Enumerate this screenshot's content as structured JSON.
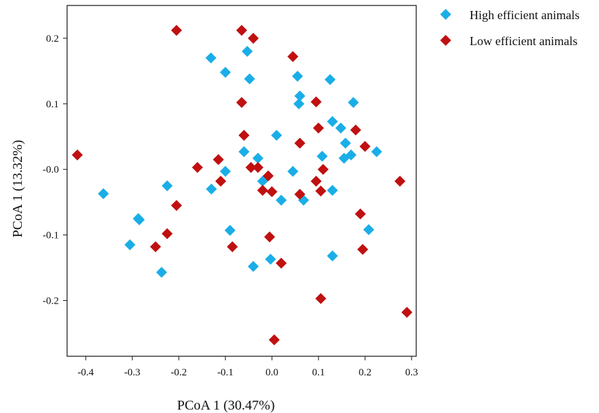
{
  "chart_data": {
    "type": "scatter",
    "title": "",
    "xlabel": "PCoA 1 (30.47%)",
    "ylabel": "PCoA 1 (13.32%)",
    "xlim": [
      -0.44,
      0.31
    ],
    "ylim": [
      -0.285,
      0.25
    ],
    "x_ticks": [
      -0.4,
      -0.3,
      -0.2,
      -0.1,
      0.0,
      0.1,
      0.2,
      0.3
    ],
    "x_tick_labels": [
      "-0.4",
      "-0.3",
      "-0.2",
      "-0.1",
      "0.0",
      "0.1",
      "0.2",
      "0.3"
    ],
    "y_ticks": [
      0.2,
      0.1,
      0.0,
      -0.1,
      -0.2
    ],
    "y_tick_labels": [
      "0.2",
      "0.1",
      "-0.0",
      "-0.1",
      "-0.2"
    ],
    "grid": false,
    "legend_position": "top-right outside",
    "marker": "diamond",
    "series": [
      {
        "name": "High efficient animals",
        "color": "#1aaee8",
        "points": [
          [
            -0.362,
            -0.037
          ],
          [
            -0.305,
            -0.115
          ],
          [
            -0.287,
            -0.075
          ],
          [
            -0.285,
            -0.077
          ],
          [
            -0.237,
            -0.157
          ],
          [
            -0.225,
            -0.025
          ],
          [
            -0.131,
            0.17
          ],
          [
            -0.13,
            -0.03
          ],
          [
            -0.1,
            0.148
          ],
          [
            -0.1,
            -0.003
          ],
          [
            -0.09,
            -0.093
          ],
          [
            -0.053,
            0.18
          ],
          [
            -0.048,
            0.138
          ],
          [
            -0.06,
            0.027
          ],
          [
            -0.04,
            -0.148
          ],
          [
            -0.03,
            0.017
          ],
          [
            -0.02,
            -0.018
          ],
          [
            0.01,
            0.052
          ],
          [
            0.02,
            -0.047
          ],
          [
            -0.003,
            -0.137
          ],
          [
            0.045,
            -0.003
          ],
          [
            0.055,
            0.142
          ],
          [
            0.06,
            0.112
          ],
          [
            0.058,
            0.1
          ],
          [
            0.068,
            -0.047
          ],
          [
            0.108,
            0.02
          ],
          [
            0.125,
            0.137
          ],
          [
            0.13,
            0.073
          ],
          [
            0.148,
            0.063
          ],
          [
            0.13,
            -0.032
          ],
          [
            0.13,
            -0.132
          ],
          [
            0.158,
            0.04
          ],
          [
            0.155,
            0.017
          ],
          [
            0.17,
            0.022
          ],
          [
            0.175,
            0.102
          ],
          [
            0.208,
            -0.092
          ],
          [
            0.225,
            0.027
          ]
        ]
      },
      {
        "name": "Low efficient animals",
        "color": "#c01010",
        "points": [
          [
            -0.418,
            0.022
          ],
          [
            -0.205,
            0.212
          ],
          [
            -0.225,
            -0.098
          ],
          [
            -0.205,
            -0.055
          ],
          [
            -0.25,
            -0.118
          ],
          [
            -0.16,
            0.003
          ],
          [
            -0.115,
            0.015
          ],
          [
            -0.11,
            -0.018
          ],
          [
            -0.085,
            -0.118
          ],
          [
            -0.065,
            0.212
          ],
          [
            -0.04,
            0.2
          ],
          [
            -0.065,
            0.102
          ],
          [
            -0.06,
            0.052
          ],
          [
            -0.045,
            0.003
          ],
          [
            -0.03,
            0.003
          ],
          [
            -0.02,
            -0.032
          ],
          [
            -0.008,
            -0.01
          ],
          [
            0.0,
            -0.034
          ],
          [
            -0.005,
            -0.103
          ],
          [
            0.02,
            -0.143
          ],
          [
            0.005,
            -0.26
          ],
          [
            0.045,
            0.172
          ],
          [
            0.06,
            0.04
          ],
          [
            0.06,
            -0.038
          ],
          [
            0.095,
            0.103
          ],
          [
            0.1,
            0.063
          ],
          [
            0.095,
            -0.018
          ],
          [
            0.105,
            -0.033
          ],
          [
            0.11,
            0.0
          ],
          [
            0.105,
            -0.197
          ],
          [
            0.18,
            0.06
          ],
          [
            0.2,
            0.035
          ],
          [
            0.19,
            -0.068
          ],
          [
            0.195,
            -0.122
          ],
          [
            0.275,
            -0.018
          ],
          [
            0.29,
            -0.218
          ]
        ]
      }
    ]
  }
}
